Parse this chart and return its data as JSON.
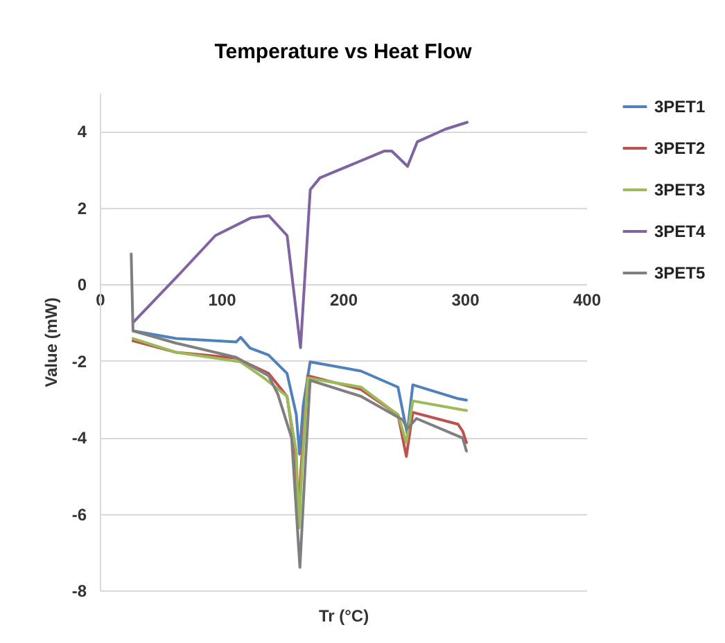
{
  "chart_data": {
    "type": "line",
    "title": "Temperature vs Heat Flow",
    "xlabel": "Tr (°C)",
    "ylabel": "Value (mW)",
    "xlim": [
      0,
      400
    ],
    "xticks": [
      0,
      100,
      200,
      300,
      400
    ],
    "ylim": [
      -8,
      5
    ],
    "yticks": [
      -8,
      -6,
      -4,
      -2,
      0,
      2,
      4
    ],
    "grid": "y",
    "legend": "right",
    "series": [
      {
        "name": "3PET1",
        "color": "#4f81bd",
        "x": [
          27.3,
          62.7,
          112.1,
          115.8,
          123.5,
          138.7,
          153.9,
          161.5,
          164.2,
          167.2,
          172.9,
          214.7,
          245.1,
          252.7,
          257.3,
          294.5,
          301.4
        ],
        "values": [
          -1.22,
          -1.42,
          -1.51,
          -1.39,
          -1.67,
          -1.85,
          -2.33,
          -3.4,
          -4.44,
          -3.17,
          -2.03,
          -2.27,
          -2.69,
          -3.9,
          -2.63,
          -2.99,
          -3.03
        ]
      },
      {
        "name": "3PET2",
        "color": "#c0504d",
        "x": [
          27.3,
          62.7,
          112.1,
          138.7,
          153.9,
          160.7,
          163.3,
          165.3,
          170.9,
          214.7,
          245.1,
          252.0,
          257.3,
          294.5,
          298.3,
          301.4
        ],
        "values": [
          -1.48,
          -1.78,
          -1.93,
          -2.33,
          -2.93,
          -4.38,
          -6.19,
          -4.86,
          -2.39,
          -2.75,
          -3.41,
          -4.5,
          -3.35,
          -3.66,
          -3.84,
          -4.14
        ]
      },
      {
        "name": "3PET3",
        "color": "#9bbb59",
        "x": [
          27.3,
          62.7,
          115.8,
          134.9,
          153.9,
          161.5,
          163.8,
          166.1,
          170.9,
          214.7,
          245.1,
          252.0,
          257.3,
          301.4
        ],
        "values": [
          -1.42,
          -1.78,
          -2.03,
          -2.45,
          -2.93,
          -4.38,
          -6.37,
          -4.86,
          -2.45,
          -2.69,
          -3.41,
          -4.14,
          -3.05,
          -3.3
        ]
      },
      {
        "name": "3PET4",
        "color": "#8064a2",
        "x": [
          27.4,
          63,
          95,
          124,
          139,
          154,
          165,
          173,
          181,
          234,
          240,
          253,
          261,
          284,
          302
        ],
        "values": [
          -1.0,
          0.18,
          1.27,
          1.73,
          1.79,
          1.27,
          -1.66,
          2.47,
          2.78,
          3.48,
          3.48,
          3.08,
          3.72,
          4.05,
          4.23
        ]
      },
      {
        "name": "3PET5",
        "color": "#7f7f7f",
        "x": [
          25.8,
          27.3,
          62.7,
          112.1,
          138.7,
          146.3,
          157.7,
          164.5,
          169.1,
          172.9,
          214.7,
          248.9,
          252.7,
          260.3,
          298.3,
          301.4
        ],
        "values": [
          0.79,
          -1.22,
          -1.54,
          -1.91,
          -2.39,
          -2.87,
          -4.02,
          -7.4,
          -4.62,
          -2.51,
          -2.93,
          -3.54,
          -3.78,
          -3.51,
          -4.02,
          -4.36
        ]
      }
    ]
  }
}
